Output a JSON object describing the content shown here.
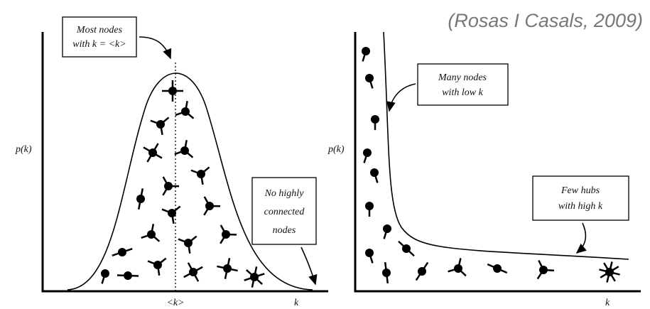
{
  "citation": "(Rosas I Casals, 2009)",
  "panels": [
    {
      "y_label": "p(k)",
      "x_label": "k",
      "mean_label": "<k>",
      "callouts": [
        {
          "lines": [
            "Most nodes",
            "with k = <k>"
          ]
        },
        {
          "lines": [
            "No highly",
            "connected",
            "nodes"
          ]
        }
      ]
    },
    {
      "y_label": "p(k)",
      "x_label": "k",
      "callouts": [
        {
          "lines": [
            "Many nodes",
            "with low k"
          ]
        },
        {
          "lines": [
            "Few hubs",
            "with high k"
          ]
        }
      ]
    }
  ]
}
